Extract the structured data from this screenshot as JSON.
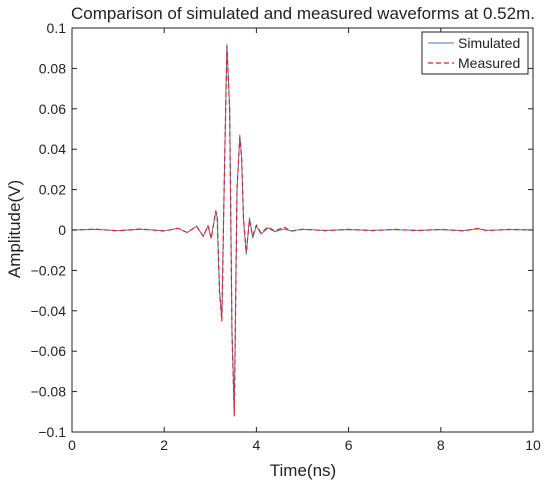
{
  "chart_data": {
    "type": "line",
    "title": "Comparison of simulated and measured waveforms at 0.52m.",
    "xlabel": "Time(ns)",
    "ylabel": "Amplitude(V)",
    "xlim": [
      0,
      10
    ],
    "ylim": [
      -0.1,
      0.1
    ],
    "x_ticks": [
      0,
      2,
      4,
      6,
      8,
      10
    ],
    "x_tick_labels": [
      "0",
      "2",
      "4",
      "6",
      "8",
      "10"
    ],
    "y_ticks": [
      -0.1,
      -0.08,
      -0.06,
      -0.04,
      -0.02,
      0,
      0.02,
      0.04,
      0.06,
      0.08,
      0.1
    ],
    "y_tick_labels": [
      "−0.1",
      "−0.08",
      "−0.06",
      "−0.04",
      "−0.02",
      "0",
      "0.02",
      "0.04",
      "0.06",
      "0.08",
      "0.1"
    ],
    "grid": false,
    "legend_position": "top-right",
    "series": [
      {
        "name": "Simulated",
        "color": "#3c7ec2",
        "style": "solid",
        "x": [
          0,
          0.5,
          1.0,
          1.5,
          2.0,
          2.3,
          2.5,
          2.7,
          2.85,
          2.95,
          3.02,
          3.08,
          3.12,
          3.15,
          3.2,
          3.25,
          3.3,
          3.36,
          3.42,
          3.47,
          3.52,
          3.58,
          3.64,
          3.68,
          3.72,
          3.78,
          3.85,
          3.92,
          4.0,
          4.1,
          4.25,
          4.4,
          4.6,
          4.75,
          5.0,
          5.5,
          6.0,
          6.5,
          7.0,
          7.5,
          8.0,
          8.5,
          8.8,
          9.0,
          9.5,
          10.0
        ],
        "y": [
          0,
          0.0003,
          -0.0003,
          0.0004,
          -0.0004,
          0.0008,
          -0.0012,
          0.0018,
          -0.003,
          0.002,
          -0.004,
          0.004,
          0.0095,
          0.006,
          -0.03,
          -0.044,
          0.02,
          0.092,
          0.06,
          -0.05,
          -0.09,
          0.02,
          0.047,
          0.036,
          0.005,
          -0.012,
          0.006,
          -0.004,
          0.002,
          -0.002,
          0.001,
          -0.0008,
          0.0005,
          -0.0004,
          0.0003,
          -0.0002,
          0.0002,
          -0.0002,
          0.0002,
          -0.0002,
          0.0002,
          -0.0003,
          0.0006,
          -0.0002,
          0.0002,
          0
        ]
      },
      {
        "name": "Measured",
        "color": "#e4242b",
        "style": "dashed",
        "x": [
          0,
          0.5,
          1.0,
          1.5,
          2.0,
          2.3,
          2.5,
          2.7,
          2.85,
          2.95,
          3.02,
          3.08,
          3.12,
          3.15,
          3.2,
          3.25,
          3.3,
          3.36,
          3.42,
          3.47,
          3.52,
          3.58,
          3.64,
          3.68,
          3.72,
          3.78,
          3.85,
          3.92,
          4.0,
          4.1,
          4.25,
          4.4,
          4.6,
          4.75,
          5.0,
          5.5,
          6.0,
          6.5,
          7.0,
          7.5,
          8.0,
          8.5,
          8.8,
          9.0,
          9.5,
          10.0
        ],
        "y": [
          0,
          0.0004,
          -0.0004,
          0.0005,
          -0.0005,
          0.0009,
          -0.0013,
          0.0019,
          -0.0032,
          0.0022,
          -0.0042,
          0.0042,
          0.0095,
          0.0062,
          -0.031,
          -0.045,
          0.021,
          0.091,
          0.059,
          -0.051,
          -0.092,
          0.021,
          0.046,
          0.035,
          0.006,
          -0.011,
          0.005,
          -0.003,
          0.0025,
          -0.0015,
          0.0015,
          -0.0005,
          0.0015,
          -0.0006,
          0.0004,
          -0.0003,
          0.0003,
          -0.0003,
          0.0003,
          -0.0003,
          0.0003,
          -0.0004,
          0.0008,
          -0.0003,
          0.0003,
          0
        ]
      }
    ]
  }
}
